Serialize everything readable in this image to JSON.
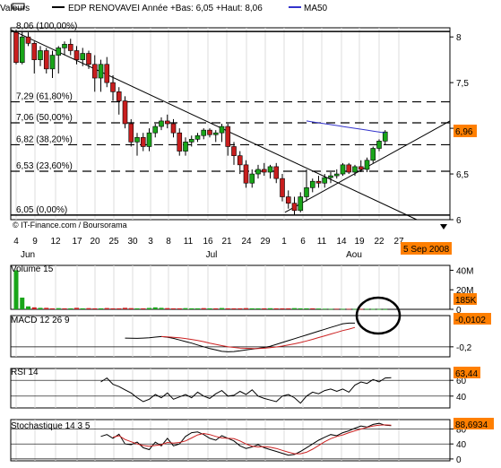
{
  "header": {
    "valeurs": "Valeurs",
    "legend_main": "EDP RENOVAVEI  Année +Bas: 6,05 +Haut: 8,06",
    "legend_ma": "MA50"
  },
  "credit": "© IT-Finance.com / Boursorama",
  "colors": {
    "up": "#19a519",
    "down": "#c81e1e",
    "ma": "#3333cc",
    "price_tag": "#ff7f00",
    "macd_signal": "#cc2222",
    "stoch_signal": "#cc2222",
    "annotation": "#000000"
  },
  "annotation": {
    "type": "circle",
    "target": "macd-crossover"
  },
  "chart_data": [
    {
      "type": "candlestick",
      "name": "price",
      "ylim": [
        6.0,
        8.1
      ],
      "y_ticks": [
        "8",
        "7,5",
        "7",
        "6,5",
        "6"
      ],
      "current_price": "6,96",
      "date_tag": "5 Sep 2008",
      "x_day_labels": [
        "4",
        "9",
        "12",
        "17",
        "20",
        "25",
        "30",
        "3",
        "8",
        "11",
        "16",
        "21",
        "24",
        "29",
        "1",
        "6",
        "11",
        "14",
        "19",
        "22",
        "27"
      ],
      "x_month_labels": [
        "Jun",
        "Jul",
        "Aou"
      ],
      "fib_levels": [
        {
          "label": "8,06 (100,00%)",
          "value": 8.06
        },
        {
          "label": "7,29 (61,80%)",
          "value": 7.29
        },
        {
          "label": "7,06 (50,00%)",
          "value": 7.06
        },
        {
          "label": "6,82 (38,20%)",
          "value": 6.82
        },
        {
          "label": "6,53 (23,60%)",
          "value": 6.53
        },
        {
          "label": "6,05 (0,00%)",
          "value": 6.05
        }
      ],
      "candles": [
        {
          "o": 8.05,
          "h": 8.08,
          "l": 7.7,
          "c": 7.72
        },
        {
          "o": 7.72,
          "h": 8.06,
          "l": 7.7,
          "c": 8.0
        },
        {
          "o": 8.0,
          "h": 8.05,
          "l": 7.9,
          "c": 7.93
        },
        {
          "o": 7.93,
          "h": 7.95,
          "l": 7.6,
          "c": 7.75
        },
        {
          "o": 7.75,
          "h": 7.9,
          "l": 7.68,
          "c": 7.85
        },
        {
          "o": 7.85,
          "h": 7.88,
          "l": 7.6,
          "c": 7.65
        },
        {
          "o": 7.65,
          "h": 7.85,
          "l": 7.55,
          "c": 7.8
        },
        {
          "o": 7.8,
          "h": 7.9,
          "l": 7.6,
          "c": 7.88
        },
        {
          "o": 7.88,
          "h": 7.95,
          "l": 7.8,
          "c": 7.92
        },
        {
          "o": 7.92,
          "h": 7.98,
          "l": 7.8,
          "c": 7.85
        },
        {
          "o": 7.85,
          "h": 7.9,
          "l": 7.7,
          "c": 7.75
        },
        {
          "o": 7.75,
          "h": 7.88,
          "l": 7.68,
          "c": 7.82
        },
        {
          "o": 7.82,
          "h": 7.85,
          "l": 7.65,
          "c": 7.7
        },
        {
          "o": 7.7,
          "h": 7.8,
          "l": 7.4,
          "c": 7.55
        },
        {
          "o": 7.55,
          "h": 7.75,
          "l": 7.4,
          "c": 7.7
        },
        {
          "o": 7.7,
          "h": 7.78,
          "l": 7.45,
          "c": 7.5
        },
        {
          "o": 7.5,
          "h": 7.58,
          "l": 7.3,
          "c": 7.4
        },
        {
          "o": 7.4,
          "h": 7.45,
          "l": 7.15,
          "c": 7.3
        },
        {
          "o": 7.3,
          "h": 7.35,
          "l": 7.0,
          "c": 7.05
        },
        {
          "o": 7.05,
          "h": 7.1,
          "l": 6.8,
          "c": 6.85
        },
        {
          "o": 6.85,
          "h": 6.95,
          "l": 6.7,
          "c": 6.9
        },
        {
          "o": 6.9,
          "h": 6.95,
          "l": 6.75,
          "c": 6.8
        },
        {
          "o": 6.8,
          "h": 7.0,
          "l": 6.75,
          "c": 6.95
        },
        {
          "o": 6.95,
          "h": 7.05,
          "l": 6.9,
          "c": 7.02
        },
        {
          "o": 7.02,
          "h": 7.12,
          "l": 6.98,
          "c": 7.08
        },
        {
          "o": 7.08,
          "h": 7.15,
          "l": 7.0,
          "c": 7.05
        },
        {
          "o": 7.05,
          "h": 7.1,
          "l": 6.9,
          "c": 6.95
        },
        {
          "o": 6.95,
          "h": 7.0,
          "l": 6.7,
          "c": 6.75
        },
        {
          "o": 6.75,
          "h": 6.9,
          "l": 6.7,
          "c": 6.85
        },
        {
          "o": 6.85,
          "h": 6.92,
          "l": 6.8,
          "c": 6.88
        },
        {
          "o": 6.88,
          "h": 6.95,
          "l": 6.85,
          "c": 6.92
        },
        {
          "o": 6.92,
          "h": 7.0,
          "l": 6.88,
          "c": 6.98
        },
        {
          "o": 6.98,
          "h": 7.0,
          "l": 6.9,
          "c": 6.93
        },
        {
          "o": 6.93,
          "h": 6.98,
          "l": 6.85,
          "c": 6.95
        },
        {
          "o": 6.95,
          "h": 7.05,
          "l": 6.85,
          "c": 7.02
        },
        {
          "o": 7.02,
          "h": 7.05,
          "l": 6.7,
          "c": 6.8
        },
        {
          "o": 6.8,
          "h": 6.85,
          "l": 6.6,
          "c": 6.7
        },
        {
          "o": 6.7,
          "h": 6.75,
          "l": 6.5,
          "c": 6.6
        },
        {
          "o": 6.6,
          "h": 6.65,
          "l": 6.35,
          "c": 6.4
        },
        {
          "o": 6.4,
          "h": 6.55,
          "l": 6.35,
          "c": 6.5
        },
        {
          "o": 6.5,
          "h": 6.6,
          "l": 6.45,
          "c": 6.55
        },
        {
          "o": 6.55,
          "h": 6.62,
          "l": 6.48,
          "c": 6.52
        },
        {
          "o": 6.52,
          "h": 6.6,
          "l": 6.45,
          "c": 6.58
        },
        {
          "o": 6.58,
          "h": 6.62,
          "l": 6.4,
          "c": 6.45
        },
        {
          "o": 6.45,
          "h": 6.5,
          "l": 6.2,
          "c": 6.25
        },
        {
          "o": 6.25,
          "h": 6.32,
          "l": 6.12,
          "c": 6.18
        },
        {
          "o": 6.18,
          "h": 6.25,
          "l": 6.05,
          "c": 6.1
        },
        {
          "o": 6.1,
          "h": 6.3,
          "l": 6.08,
          "c": 6.25
        },
        {
          "o": 6.25,
          "h": 6.55,
          "l": 6.2,
          "c": 6.35
        },
        {
          "o": 6.35,
          "h": 6.45,
          "l": 6.3,
          "c": 6.42
        },
        {
          "o": 6.42,
          "h": 6.48,
          "l": 6.35,
          "c": 6.4
        },
        {
          "o": 6.4,
          "h": 6.5,
          "l": 6.35,
          "c": 6.46
        },
        {
          "o": 6.46,
          "h": 6.52,
          "l": 6.4,
          "c": 6.48
        },
        {
          "o": 6.48,
          "h": 6.55,
          "l": 6.45,
          "c": 6.5
        },
        {
          "o": 6.5,
          "h": 6.62,
          "l": 6.48,
          "c": 6.6
        },
        {
          "o": 6.6,
          "h": 6.62,
          "l": 6.5,
          "c": 6.52
        },
        {
          "o": 6.52,
          "h": 6.6,
          "l": 6.48,
          "c": 6.58
        },
        {
          "o": 6.58,
          "h": 6.65,
          "l": 6.52,
          "c": 6.55
        },
        {
          "o": 6.55,
          "h": 6.68,
          "l": 6.52,
          "c": 6.65
        },
        {
          "o": 6.65,
          "h": 6.8,
          "l": 6.62,
          "c": 6.78
        },
        {
          "o": 6.78,
          "h": 6.88,
          "l": 6.75,
          "c": 6.86
        },
        {
          "o": 6.86,
          "h": 6.98,
          "l": 6.82,
          "c": 6.96
        }
      ],
      "ma50": [
        7.08,
        7.07,
        7.06,
        7.05,
        7.04,
        7.03,
        7.02,
        7.01,
        7.0,
        6.99,
        6.98,
        6.97,
        6.96,
        6.95
      ]
    },
    {
      "type": "bar",
      "name": "Volume 15",
      "title": "Volume 15",
      "ylim": [
        0,
        45
      ],
      "y_ticks": [
        "40M",
        "20M",
        "0"
      ],
      "current_value": "185K",
      "values": [
        40,
        12,
        3,
        2,
        1.5,
        1.5,
        1,
        1.2,
        1,
        1,
        1.5,
        1,
        1.2,
        1,
        1,
        1.3,
        1,
        1,
        1.5,
        1.2,
        1,
        1,
        1.4,
        2,
        1.5,
        1.2,
        1,
        1,
        1.2,
        1,
        1,
        1.2,
        1,
        1,
        1.3,
        1,
        1,
        1,
        1.2,
        1,
        1,
        1,
        1.1,
        1,
        1,
        1,
        1.2,
        1,
        1,
        1,
        0.8,
        0.6,
        0.5,
        0.6,
        0.5,
        0.5,
        0.4,
        0.4,
        0.5,
        0.4,
        0.3,
        0.2
      ],
      "colors_up": [
        true,
        true,
        true,
        false,
        true,
        false,
        false,
        true,
        false,
        true,
        false,
        true,
        false,
        false,
        true,
        false,
        false,
        false,
        false,
        false,
        true,
        false,
        true,
        true,
        true,
        false,
        false,
        false,
        true,
        true,
        true,
        false,
        true,
        false,
        true,
        false,
        false,
        false,
        false,
        true,
        true,
        false,
        true,
        false,
        false,
        false,
        true,
        true,
        true,
        false,
        true,
        true,
        true,
        false,
        true,
        false,
        true,
        false,
        true,
        true,
        true,
        true
      ]
    },
    {
      "type": "line",
      "name": "MACD 12 26 9",
      "title": "MACD 12 26 9",
      "ylim": [
        -0.28,
        0.05
      ],
      "y_ticks": [
        "-0,2"
      ],
      "current_value": "-0,0102",
      "x_start": 18,
      "series": [
        {
          "values": [
            -0.13,
            -0.131,
            -0.132,
            -0.13,
            -0.128,
            -0.122,
            -0.118,
            -0.123,
            -0.132,
            -0.145,
            -0.158,
            -0.17,
            -0.185,
            -0.2,
            -0.214,
            -0.225,
            -0.236,
            -0.24,
            -0.238,
            -0.232,
            -0.225,
            -0.218,
            -0.212,
            -0.205,
            -0.195,
            -0.18,
            -0.165,
            -0.15,
            -0.135,
            -0.12,
            -0.105,
            -0.09,
            -0.075,
            -0.06,
            -0.045,
            -0.03,
            -0.015,
            -0.01,
            -0.0102
          ]
        },
        {
          "values": [
            null,
            null,
            null,
            null,
            null,
            null,
            -0.118,
            -0.12,
            -0.124,
            -0.128,
            -0.134,
            -0.141,
            -0.149,
            -0.159,
            -0.17,
            -0.18,
            -0.19,
            -0.199,
            -0.205,
            -0.21,
            -0.212,
            -0.213,
            -0.213,
            -0.211,
            -0.207,
            -0.201,
            -0.194,
            -0.185,
            -0.176,
            -0.165,
            -0.153,
            -0.14,
            -0.126,
            -0.112,
            -0.098,
            -0.084,
            -0.07,
            -0.058,
            -0.045
          ]
        }
      ]
    },
    {
      "type": "line",
      "name": "RSI 14",
      "title": "RSI 14",
      "ylim": [
        25,
        75
      ],
      "y_ticks": [
        "60",
        "40"
      ],
      "current_value": "63,44",
      "x_start": 14,
      "series": [
        {
          "values": [
            58,
            63,
            55,
            52,
            48,
            44,
            38,
            33,
            36,
            42,
            38,
            44,
            36,
            39,
            42,
            38,
            45,
            40,
            37,
            43,
            47,
            40,
            41,
            46,
            42,
            48,
            40,
            37,
            35,
            33,
            40,
            42,
            38,
            31,
            40,
            45,
            43,
            47,
            49,
            46,
            49,
            45,
            54,
            58,
            56,
            61,
            58,
            63,
            63.44
          ]
        }
      ]
    },
    {
      "type": "line",
      "name": "Stochastique 14 3 5",
      "title": "Stochastique 14 3 5",
      "ylim": [
        -5,
        105
      ],
      "y_ticks": [
        "80",
        "40",
        "0"
      ],
      "current_value": "88,6934",
      "x_start": 14,
      "series": [
        {
          "values": [
            60,
            65,
            55,
            66,
            40,
            38,
            45,
            30,
            25,
            45,
            35,
            55,
            35,
            40,
            60,
            70,
            72,
            65,
            55,
            50,
            62,
            55,
            48,
            35,
            28,
            32,
            38,
            30,
            25,
            20,
            15,
            10,
            12,
            20,
            30,
            40,
            50,
            58,
            65,
            62,
            70,
            75,
            82,
            88,
            85,
            92,
            95,
            90,
            88.69
          ]
        },
        {
          "values": [
            null,
            null,
            58,
            62,
            52,
            46,
            40,
            36,
            34,
            36,
            38,
            44,
            42,
            44,
            48,
            56,
            64,
            68,
            65,
            60,
            56,
            55,
            54,
            48,
            40,
            34,
            32,
            33,
            31,
            28,
            23,
            18,
            14,
            14,
            18,
            26,
            36,
            46,
            54,
            60,
            64,
            70,
            75,
            80,
            84,
            88,
            90,
            91,
            90
          ]
        }
      ]
    }
  ]
}
